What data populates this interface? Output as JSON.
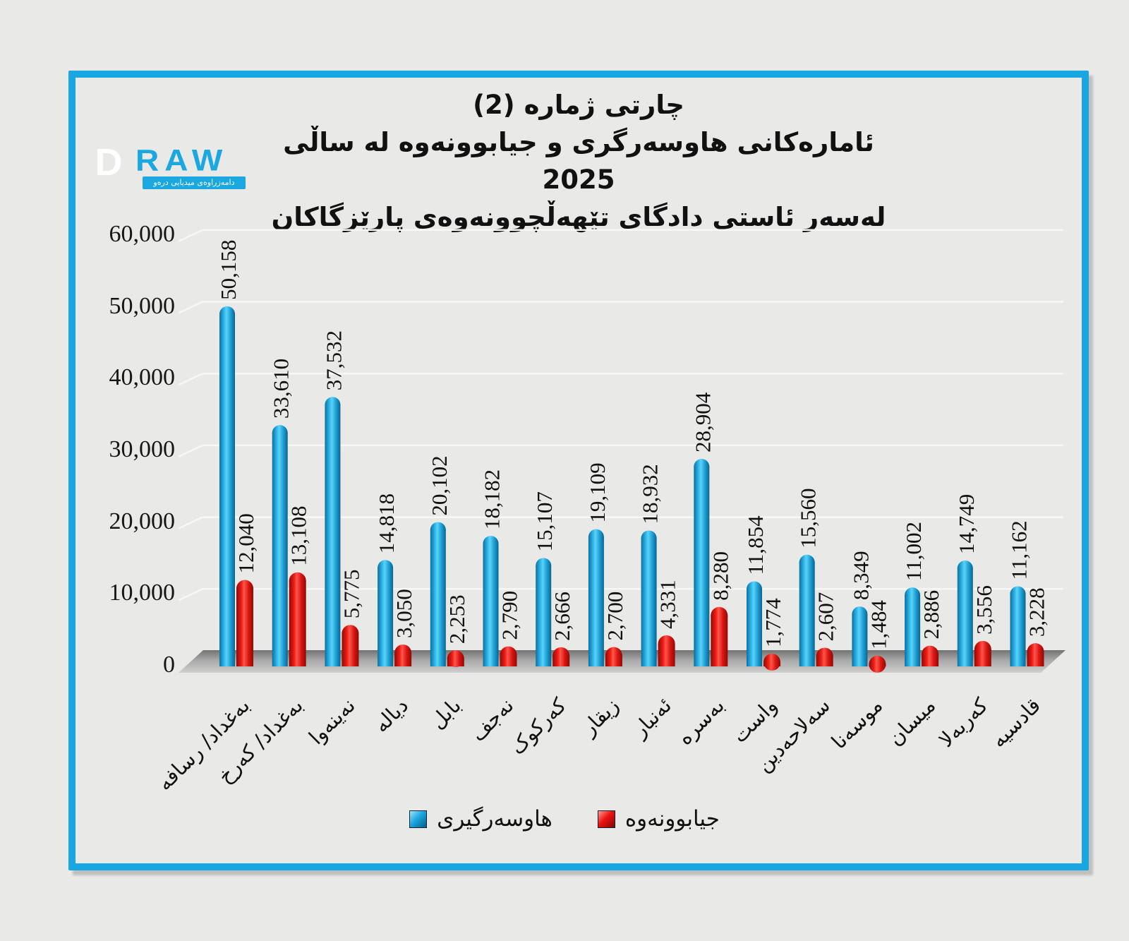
{
  "logo": {
    "d": "D",
    "raw": "RAW",
    "tagline": "دامەزراوەی میدیایی درەو"
  },
  "title": {
    "line1": "چارتی ژماره (2)",
    "line2": "ئامارەکانی هاوسەرگری و جیابوونەوه له ساڵی 2025",
    "line3": "لەسەر ئاستی دادگای تێهەڵچوونەوەی پارێزگاکان"
  },
  "chart_data": {
    "type": "bar",
    "title": "ئامارەکانی هاوسەرگری و جیابوونەوه له ساڵی 2025 لەسەر ئاستی دادگای تێهەڵچوونەوەی پارێزگاکان",
    "categories": [
      "بەغداد/ رسافە",
      "بەغداد/ کەرخ",
      "نەینەوا",
      "دیالە",
      "بابل",
      "نەجف",
      "کەرکوک",
      "زیقار",
      "ئەنبار",
      "بەسرە",
      "واست",
      "سەلاحەدین",
      "موسەنا",
      "میسان",
      "کەربەلا",
      "قادسیە"
    ],
    "series": [
      {
        "name": "هاوسەرگیری",
        "color": "#1ba7e0",
        "values": [
          50158,
          33610,
          37532,
          14818,
          20102,
          18182,
          15107,
          19109,
          18932,
          28904,
          11854,
          15560,
          8349,
          11002,
          14749,
          11162
        ]
      },
      {
        "name": "جیابوونەوه",
        "color": "#ee1111",
        "values": [
          12040,
          13108,
          5775,
          3050,
          2253,
          2790,
          2666,
          2700,
          4331,
          8280,
          1774,
          2607,
          1484,
          2886,
          3556,
          3228
        ]
      }
    ],
    "y_ticks": [
      "60,000",
      "50,000",
      "40,000",
      "30,000",
      "20,000",
      "10,000",
      "0"
    ],
    "ylim": [
      0,
      60000
    ],
    "grid": true,
    "legend_position": "bottom",
    "xlabel": "",
    "ylabel": ""
  },
  "colors": {
    "frame": "#18a7e2",
    "background": "#e9e9e8",
    "marriage_bar": "#1ba7e0",
    "divorce_bar": "#ee1111"
  }
}
